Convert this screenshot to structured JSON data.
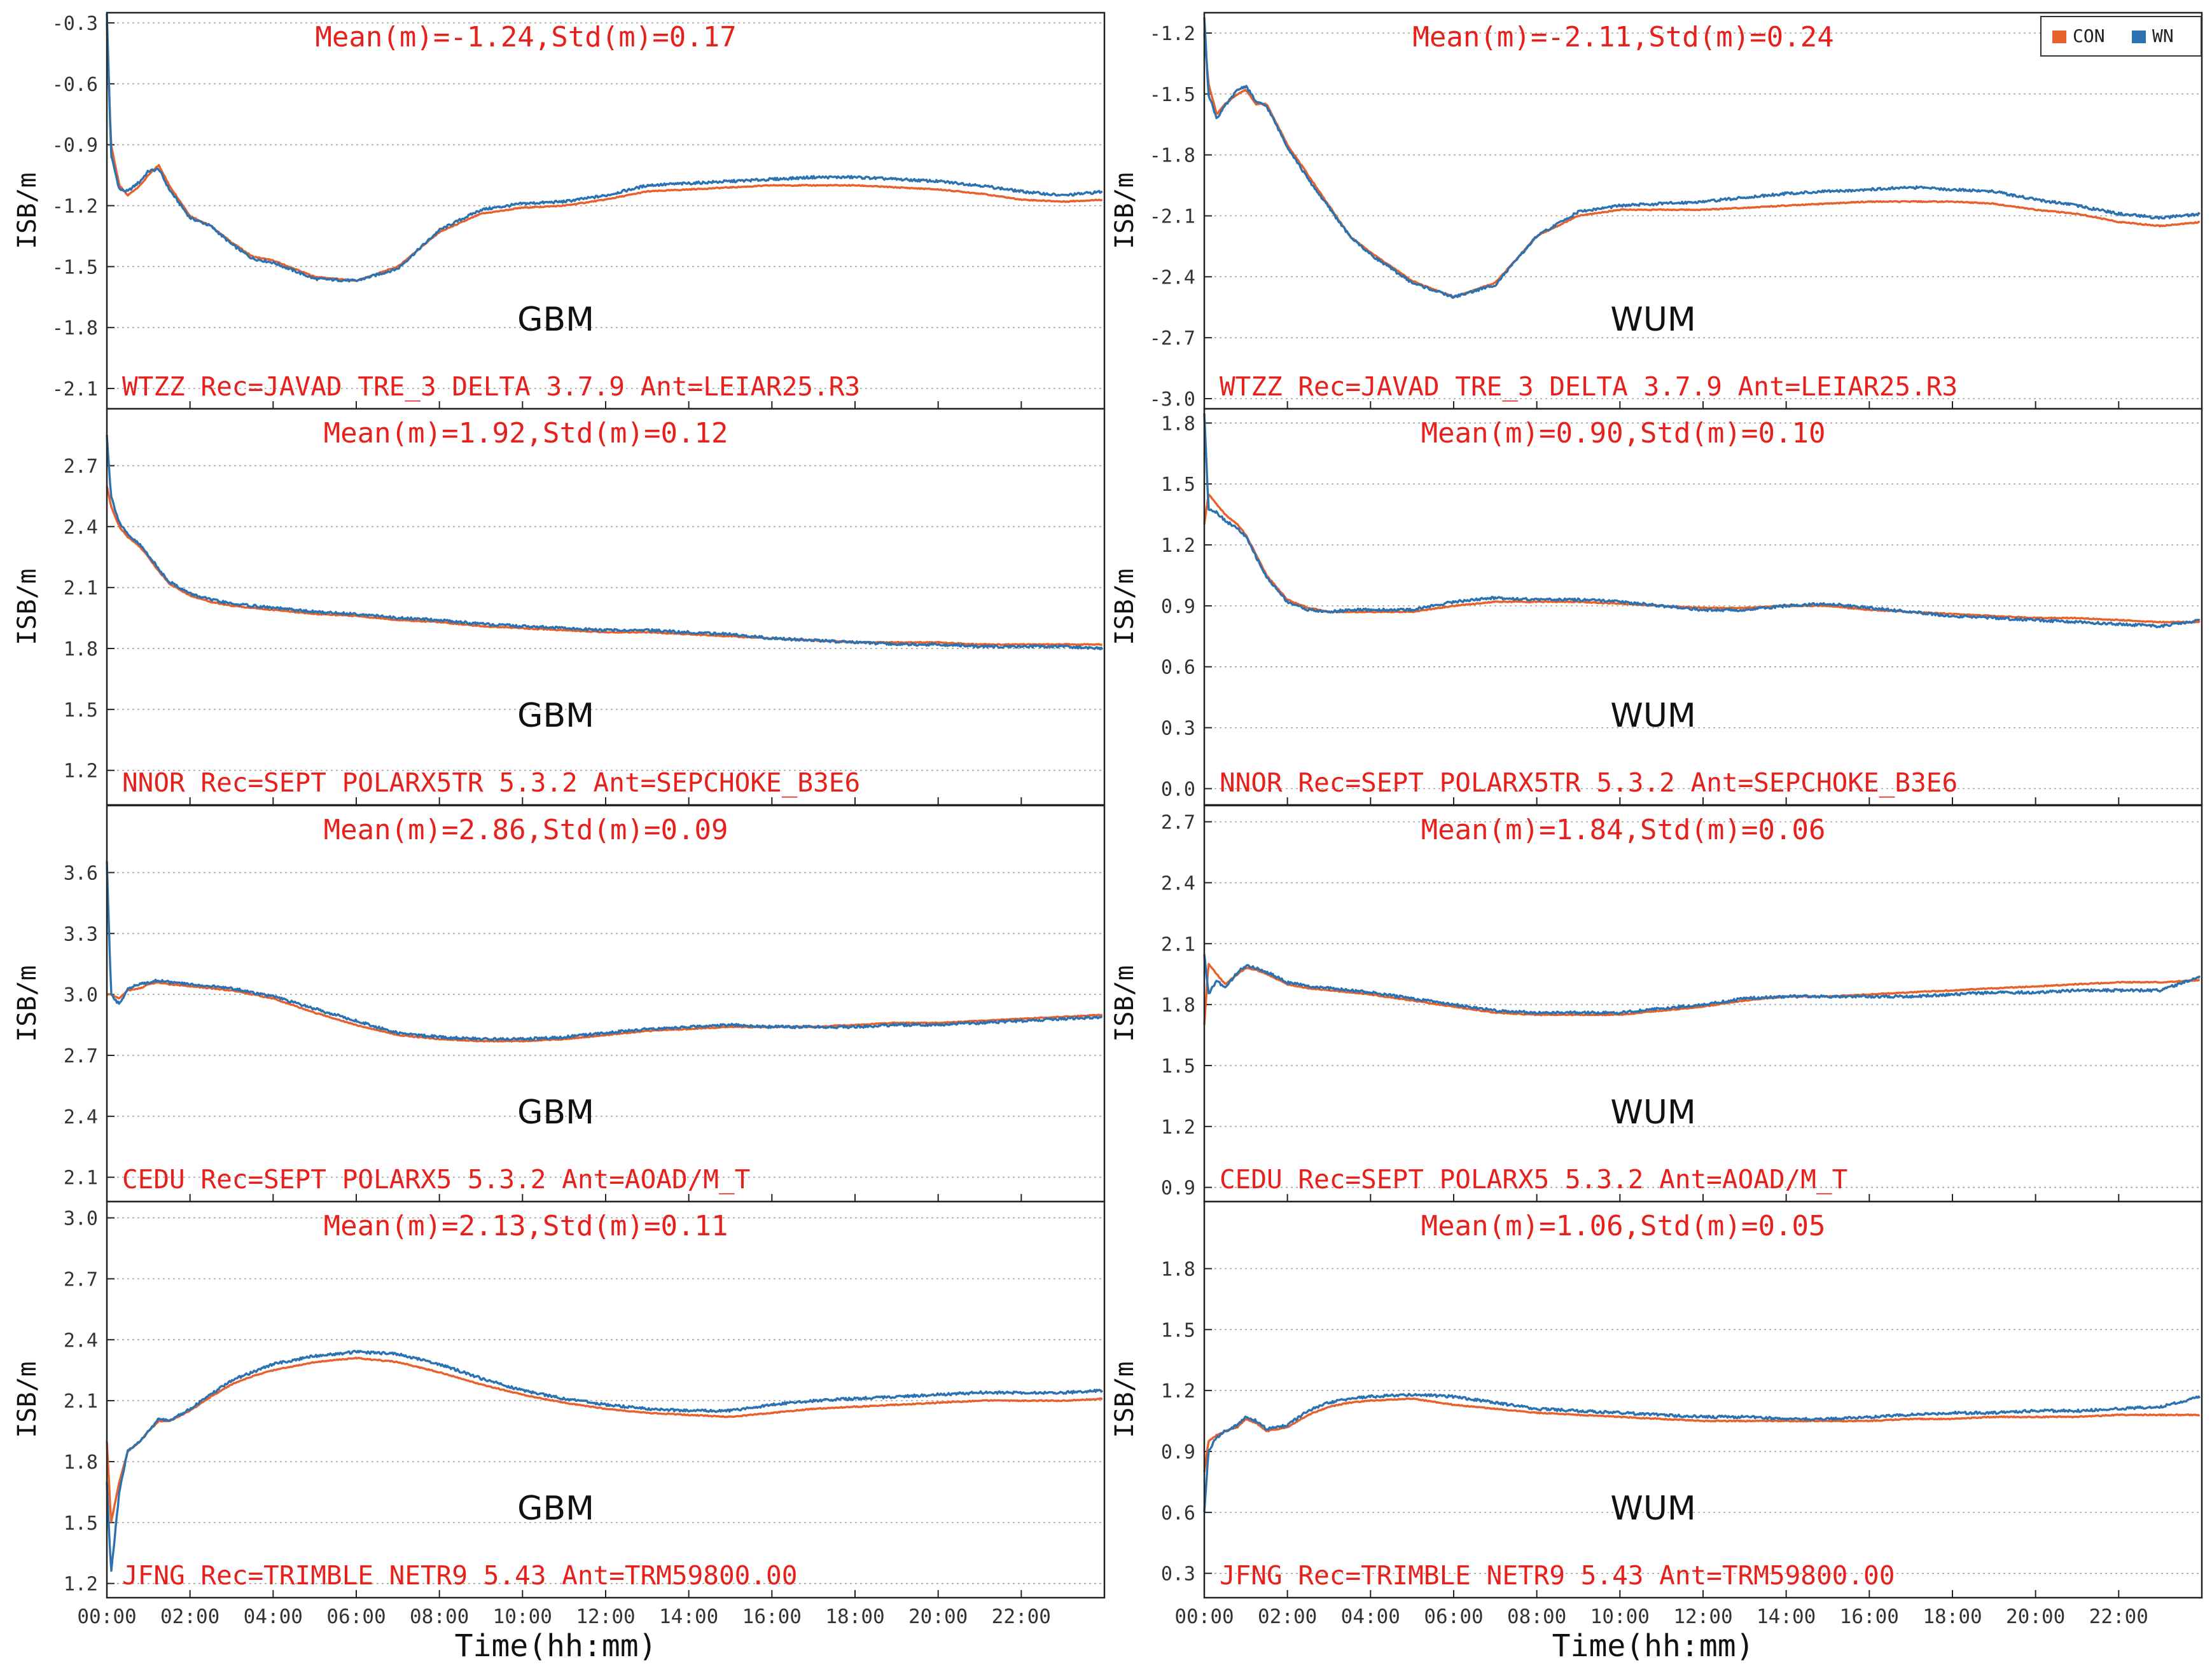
{
  "colors": {
    "con": "#e8612c",
    "wn": "#2c72b0",
    "annotation": "#e8201c",
    "grid": "#9a9a9a",
    "frame": "#222222"
  },
  "legend": [
    {
      "key": "con",
      "label": "CON"
    },
    {
      "key": "wn",
      "label": "WN"
    }
  ],
  "axis_labels": {
    "ylabel": "ISB/m",
    "xlabel": "Time(hh:mm)"
  },
  "x_ticks": [
    "00:00",
    "02:00",
    "04:00",
    "06:00",
    "08:00",
    "10:00",
    "12:00",
    "14:00",
    "16:00",
    "18:00",
    "20:00",
    "22:00"
  ],
  "chart_data": [
    {
      "type": "line",
      "product": "GBM",
      "title": "Mean(m)=-1.24,Std(m)=0.17",
      "station": "WTZZ Rec=JAVAD TRE_3 DELTA 3.7.9 Ant=LEIAR25.R3",
      "xlabel": "Time(hh:mm)",
      "ylabel": "ISB/m",
      "ylim": [
        -2.2,
        -0.25
      ],
      "yticks": [
        -0.3,
        -0.6,
        -0.9,
        -1.2,
        -1.5,
        -1.8,
        -2.1
      ],
      "x": [
        0,
        0.1,
        0.3,
        0.5,
        0.8,
        1,
        1.25,
        1.5,
        2,
        2.5,
        3,
        3.5,
        4,
        5,
        6,
        7,
        8,
        9,
        10,
        11,
        12,
        13,
        14,
        15,
        16,
        17,
        18,
        19,
        20,
        21,
        22,
        23,
        24
      ],
      "series": [
        {
          "name": "CON",
          "values": [
            -0.3,
            -0.9,
            -1.1,
            -1.15,
            -1.1,
            -1.05,
            -1.0,
            -1.1,
            -1.25,
            -1.3,
            -1.38,
            -1.45,
            -1.47,
            -1.55,
            -1.57,
            -1.5,
            -1.33,
            -1.24,
            -1.21,
            -1.2,
            -1.17,
            -1.13,
            -1.12,
            -1.11,
            -1.1,
            -1.1,
            -1.1,
            -1.11,
            -1.12,
            -1.14,
            -1.17,
            -1.18,
            -1.17
          ]
        },
        {
          "name": "WN",
          "values": [
            -0.25,
            -0.95,
            -1.12,
            -1.13,
            -1.08,
            -1.03,
            -1.02,
            -1.12,
            -1.26,
            -1.3,
            -1.39,
            -1.46,
            -1.48,
            -1.56,
            -1.57,
            -1.51,
            -1.32,
            -1.22,
            -1.19,
            -1.18,
            -1.15,
            -1.1,
            -1.09,
            -1.08,
            -1.07,
            -1.06,
            -1.06,
            -1.07,
            -1.08,
            -1.1,
            -1.13,
            -1.15,
            -1.13
          ]
        }
      ]
    },
    {
      "type": "line",
      "product": "WUM",
      "title": "Mean(m)=-2.11,Std(m)=0.24",
      "station": "WTZZ Rec=JAVAD TRE_3 DELTA 3.7.9 Ant=LEIAR25.R3",
      "xlabel": "Time(hh:mm)",
      "ylabel": "ISB/m",
      "ylim": [
        -3.05,
        -1.1
      ],
      "yticks": [
        -1.2,
        -1.5,
        -1.8,
        -2.1,
        -2.4,
        -2.7,
        -3.0
      ],
      "x": [
        0,
        0.1,
        0.3,
        0.5,
        0.8,
        1,
        1.25,
        1.5,
        2,
        2.5,
        3,
        3.5,
        4,
        5,
        6,
        7,
        8,
        9,
        10,
        11,
        12,
        13,
        14,
        15,
        16,
        17,
        18,
        19,
        20,
        21,
        22,
        23,
        24
      ],
      "series": [
        {
          "name": "CON",
          "values": [
            -1.2,
            -1.45,
            -1.6,
            -1.55,
            -1.5,
            -1.48,
            -1.55,
            -1.55,
            -1.75,
            -1.9,
            -2.05,
            -2.2,
            -2.28,
            -2.42,
            -2.5,
            -2.43,
            -2.2,
            -2.1,
            -2.07,
            -2.07,
            -2.07,
            -2.06,
            -2.05,
            -2.04,
            -2.03,
            -2.03,
            -2.03,
            -2.04,
            -2.07,
            -2.09,
            -2.13,
            -2.15,
            -2.13
          ]
        },
        {
          "name": "WN",
          "values": [
            -1.12,
            -1.5,
            -1.62,
            -1.56,
            -1.48,
            -1.46,
            -1.54,
            -1.56,
            -1.76,
            -1.92,
            -2.06,
            -2.2,
            -2.29,
            -2.43,
            -2.5,
            -2.44,
            -2.2,
            -2.08,
            -2.05,
            -2.04,
            -2.03,
            -2.01,
            -1.99,
            -1.98,
            -1.97,
            -1.96,
            -1.97,
            -1.98,
            -2.02,
            -2.05,
            -2.09,
            -2.11,
            -2.09
          ]
        }
      ]
    },
    {
      "type": "line",
      "product": "GBM",
      "title": "Mean(m)=1.92,Std(m)=0.12",
      "station": "NNOR Rec=SEPT POLARX5TR 5.3.2 Ant=SEPCHOKE_B3E6",
      "xlabel": "Time(hh:mm)",
      "ylabel": "ISB/m",
      "ylim": [
        1.03,
        2.98
      ],
      "yticks": [
        2.7,
        2.4,
        2.1,
        1.8,
        1.5,
        1.2
      ],
      "x": [
        0,
        0.1,
        0.3,
        0.5,
        0.8,
        1,
        1.25,
        1.5,
        2,
        2.5,
        3,
        3.5,
        4,
        5,
        6,
        7,
        8,
        9,
        10,
        11,
        12,
        13,
        14,
        15,
        16,
        17,
        18,
        19,
        20,
        21,
        22,
        23,
        24
      ],
      "series": [
        {
          "name": "CON",
          "values": [
            2.6,
            2.5,
            2.4,
            2.35,
            2.3,
            2.25,
            2.18,
            2.12,
            2.06,
            2.03,
            2.01,
            2.0,
            1.99,
            1.97,
            1.96,
            1.94,
            1.93,
            1.91,
            1.9,
            1.89,
            1.88,
            1.88,
            1.87,
            1.86,
            1.85,
            1.84,
            1.83,
            1.83,
            1.83,
            1.82,
            1.82,
            1.82,
            1.82
          ]
        },
        {
          "name": "WN",
          "values": [
            2.85,
            2.55,
            2.42,
            2.36,
            2.31,
            2.26,
            2.19,
            2.13,
            2.07,
            2.04,
            2.02,
            2.01,
            2.0,
            1.98,
            1.97,
            1.95,
            1.94,
            1.92,
            1.91,
            1.9,
            1.89,
            1.89,
            1.88,
            1.87,
            1.85,
            1.84,
            1.83,
            1.82,
            1.82,
            1.81,
            1.81,
            1.81,
            1.8
          ]
        }
      ]
    },
    {
      "type": "line",
      "product": "WUM",
      "title": "Mean(m)=0.90,Std(m)=0.10",
      "station": "NNOR Rec=SEPT POLARX5TR 5.3.2 Ant=SEPCHOKE_B3E6",
      "xlabel": "Time(hh:mm)",
      "ylabel": "ISB/m",
      "ylim": [
        -0.08,
        1.87
      ],
      "yticks": [
        1.8,
        1.5,
        1.2,
        0.9,
        0.6,
        0.3,
        0.0
      ],
      "x": [
        0,
        0.1,
        0.3,
        0.5,
        0.8,
        1,
        1.25,
        1.5,
        2,
        2.5,
        3,
        3.5,
        4,
        5,
        6,
        7,
        8,
        9,
        10,
        11,
        12,
        13,
        14,
        15,
        16,
        17,
        18,
        19,
        20,
        21,
        22,
        23,
        24
      ],
      "series": [
        {
          "name": "CON",
          "values": [
            1.3,
            1.45,
            1.4,
            1.35,
            1.3,
            1.25,
            1.15,
            1.05,
            0.93,
            0.89,
            0.87,
            0.87,
            0.87,
            0.87,
            0.9,
            0.92,
            0.92,
            0.92,
            0.91,
            0.9,
            0.89,
            0.89,
            0.9,
            0.9,
            0.88,
            0.87,
            0.86,
            0.85,
            0.84,
            0.84,
            0.83,
            0.82,
            0.82
          ]
        },
        {
          "name": "WN",
          "values": [
            1.85,
            1.38,
            1.36,
            1.32,
            1.28,
            1.24,
            1.14,
            1.04,
            0.92,
            0.88,
            0.87,
            0.88,
            0.88,
            0.88,
            0.92,
            0.94,
            0.93,
            0.93,
            0.92,
            0.9,
            0.88,
            0.88,
            0.9,
            0.91,
            0.89,
            0.87,
            0.85,
            0.84,
            0.83,
            0.82,
            0.81,
            0.8,
            0.83
          ]
        }
      ]
    },
    {
      "type": "line",
      "product": "GBM",
      "title": "Mean(m)=2.86,Std(m)=0.09",
      "station": "CEDU Rec=SEPT POLARX5 5.3.2 Ant=AOAD/M_T",
      "xlabel": "Time(hh:mm)",
      "ylabel": "ISB/m",
      "ylim": [
        1.98,
        3.93
      ],
      "yticks": [
        3.6,
        3.3,
        3.0,
        2.7,
        2.4,
        2.1
      ],
      "x": [
        0,
        0.1,
        0.3,
        0.5,
        0.8,
        1,
        1.25,
        1.5,
        2,
        2.5,
        3,
        3.5,
        4,
        5,
        6,
        7,
        8,
        9,
        10,
        11,
        12,
        13,
        14,
        15,
        16,
        17,
        18,
        19,
        20,
        21,
        22,
        23,
        24
      ],
      "series": [
        {
          "name": "CON",
          "values": [
            3.0,
            3.0,
            2.98,
            3.02,
            3.03,
            3.05,
            3.06,
            3.05,
            3.04,
            3.03,
            3.02,
            3.0,
            2.98,
            2.91,
            2.85,
            2.8,
            2.78,
            2.77,
            2.77,
            2.78,
            2.8,
            2.82,
            2.83,
            2.84,
            2.84,
            2.84,
            2.85,
            2.86,
            2.86,
            2.87,
            2.88,
            2.89,
            2.9
          ]
        },
        {
          "name": "WN",
          "values": [
            3.65,
            3.0,
            2.95,
            3.03,
            3.05,
            3.06,
            3.07,
            3.06,
            3.05,
            3.04,
            3.03,
            3.01,
            2.99,
            2.93,
            2.87,
            2.81,
            2.79,
            2.78,
            2.78,
            2.79,
            2.81,
            2.83,
            2.84,
            2.85,
            2.84,
            2.84,
            2.84,
            2.85,
            2.85,
            2.86,
            2.87,
            2.88,
            2.89
          ]
        }
      ]
    },
    {
      "type": "line",
      "product": "WUM",
      "title": "Mean(m)=1.84,Std(m)=0.06",
      "station": "CEDU Rec=SEPT POLARX5 5.3.2 Ant=AOAD/M_T",
      "xlabel": "Time(hh:mm)",
      "ylabel": "ISB/m",
      "ylim": [
        0.83,
        2.78
      ],
      "yticks": [
        2.7,
        2.4,
        2.1,
        1.8,
        1.5,
        1.2,
        0.9
      ],
      "x": [
        0,
        0.1,
        0.3,
        0.5,
        0.8,
        1,
        1.25,
        1.5,
        2,
        2.5,
        3,
        3.5,
        4,
        5,
        6,
        7,
        8,
        9,
        10,
        11,
        12,
        13,
        14,
        15,
        16,
        17,
        18,
        19,
        20,
        21,
        22,
        23,
        24
      ],
      "series": [
        {
          "name": "CON",
          "values": [
            1.7,
            2.0,
            1.95,
            1.9,
            1.95,
            1.98,
            1.97,
            1.95,
            1.9,
            1.88,
            1.87,
            1.86,
            1.85,
            1.82,
            1.79,
            1.76,
            1.75,
            1.75,
            1.75,
            1.77,
            1.79,
            1.82,
            1.84,
            1.84,
            1.85,
            1.86,
            1.87,
            1.88,
            1.89,
            1.9,
            1.91,
            1.91,
            1.92
          ]
        },
        {
          "name": "WN",
          "values": [
            2.05,
            1.85,
            1.92,
            1.88,
            1.96,
            1.99,
            1.98,
            1.96,
            1.91,
            1.89,
            1.88,
            1.87,
            1.86,
            1.83,
            1.8,
            1.77,
            1.76,
            1.76,
            1.76,
            1.78,
            1.8,
            1.83,
            1.84,
            1.84,
            1.84,
            1.84,
            1.85,
            1.86,
            1.86,
            1.87,
            1.87,
            1.87,
            1.94
          ]
        }
      ]
    },
    {
      "type": "line",
      "product": "GBM",
      "title": "Mean(m)=2.13,Std(m)=0.11",
      "station": "JFNG Rec=TRIMBLE NETR9 5.43 Ant=TRM59800.00",
      "xlabel": "Time(hh:mm)",
      "ylabel": "ISB/m",
      "ylim": [
        1.13,
        3.08
      ],
      "yticks": [
        3.0,
        2.7,
        2.4,
        2.1,
        1.8,
        1.5,
        1.2
      ],
      "x": [
        0,
        0.1,
        0.3,
        0.5,
        0.8,
        1,
        1.25,
        1.5,
        2,
        2.5,
        3,
        3.5,
        4,
        5,
        6,
        7,
        8,
        9,
        10,
        11,
        12,
        13,
        14,
        15,
        16,
        17,
        18,
        19,
        20,
        21,
        22,
        23,
        24
      ],
      "series": [
        {
          "name": "CON",
          "values": [
            1.9,
            1.5,
            1.7,
            1.85,
            1.9,
            1.95,
            2.0,
            2.0,
            2.05,
            2.12,
            2.18,
            2.22,
            2.25,
            2.29,
            2.31,
            2.29,
            2.24,
            2.18,
            2.13,
            2.09,
            2.06,
            2.04,
            2.03,
            2.02,
            2.04,
            2.06,
            2.07,
            2.08,
            2.09,
            2.1,
            2.1,
            2.1,
            2.11
          ]
        },
        {
          "name": "WN",
          "values": [
            1.7,
            1.25,
            1.65,
            1.85,
            1.9,
            1.95,
            2.01,
            2.0,
            2.06,
            2.13,
            2.2,
            2.24,
            2.28,
            2.32,
            2.34,
            2.33,
            2.28,
            2.21,
            2.15,
            2.11,
            2.08,
            2.06,
            2.05,
            2.05,
            2.08,
            2.1,
            2.11,
            2.12,
            2.13,
            2.14,
            2.14,
            2.14,
            2.15
          ]
        }
      ]
    },
    {
      "type": "line",
      "product": "WUM",
      "title": "Mean(m)=1.06,Std(m)=0.05",
      "station": "JFNG Rec=TRIMBLE NETR9 5.43 Ant=TRM59800.00",
      "xlabel": "Time(hh:mm)",
      "ylabel": "ISB/m",
      "ylim": [
        0.18,
        2.13
      ],
      "yticks": [
        1.8,
        1.5,
        1.2,
        0.9,
        0.6,
        0.3
      ],
      "x": [
        0,
        0.1,
        0.3,
        0.5,
        0.8,
        1,
        1.25,
        1.5,
        2,
        2.5,
        3,
        3.5,
        4,
        5,
        6,
        7,
        8,
        9,
        10,
        11,
        12,
        13,
        14,
        15,
        16,
        17,
        18,
        19,
        20,
        21,
        22,
        23,
        24
      ],
      "series": [
        {
          "name": "CON",
          "values": [
            0.8,
            0.95,
            0.98,
            1.0,
            1.02,
            1.06,
            1.04,
            1.0,
            1.02,
            1.08,
            1.12,
            1.14,
            1.15,
            1.16,
            1.13,
            1.11,
            1.09,
            1.08,
            1.07,
            1.06,
            1.05,
            1.05,
            1.05,
            1.05,
            1.05,
            1.06,
            1.06,
            1.07,
            1.07,
            1.07,
            1.08,
            1.08,
            1.08
          ]
        },
        {
          "name": "WN",
          "values": [
            0.6,
            0.9,
            0.97,
            1.0,
            1.03,
            1.07,
            1.05,
            1.01,
            1.03,
            1.1,
            1.14,
            1.16,
            1.17,
            1.18,
            1.17,
            1.14,
            1.11,
            1.1,
            1.09,
            1.08,
            1.07,
            1.07,
            1.06,
            1.06,
            1.07,
            1.08,
            1.09,
            1.09,
            1.1,
            1.1,
            1.11,
            1.12,
            1.17
          ]
        }
      ]
    }
  ]
}
